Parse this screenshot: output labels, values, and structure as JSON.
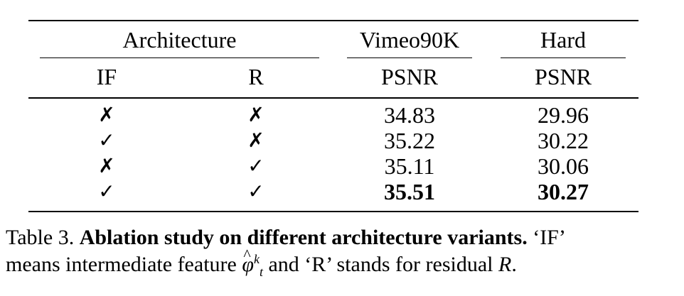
{
  "table": {
    "header": {
      "architecture": "Architecture",
      "vimeo": "Vimeo90K",
      "hard": "Hard",
      "if": "IF",
      "r": "R",
      "psnr_vimeo": "PSNR",
      "psnr_hard": "PSNR"
    },
    "rows": [
      {
        "if": "✗",
        "r": "✗",
        "vimeo": "34.83",
        "hard": "29.96"
      },
      {
        "if": "✓",
        "r": "✗",
        "vimeo": "35.22",
        "hard": "30.22"
      },
      {
        "if": "✗",
        "r": "✓",
        "vimeo": "35.11",
        "hard": "30.06"
      },
      {
        "if": "✓",
        "r": "✓",
        "vimeo": "35.51",
        "hard": "30.27"
      }
    ]
  },
  "caption": {
    "label": "Table 3.",
    "title": "Ablation study on different architecture variants.",
    "text_1": "‘IF’",
    "text_2": "means intermediate feature",
    "phi_base": "φ",
    "phi_hat": "^",
    "phi_sup": "k",
    "phi_sub": "t",
    "text_3": "and ‘R’ stands for residual",
    "residual_symbol": "R",
    "end": "."
  }
}
